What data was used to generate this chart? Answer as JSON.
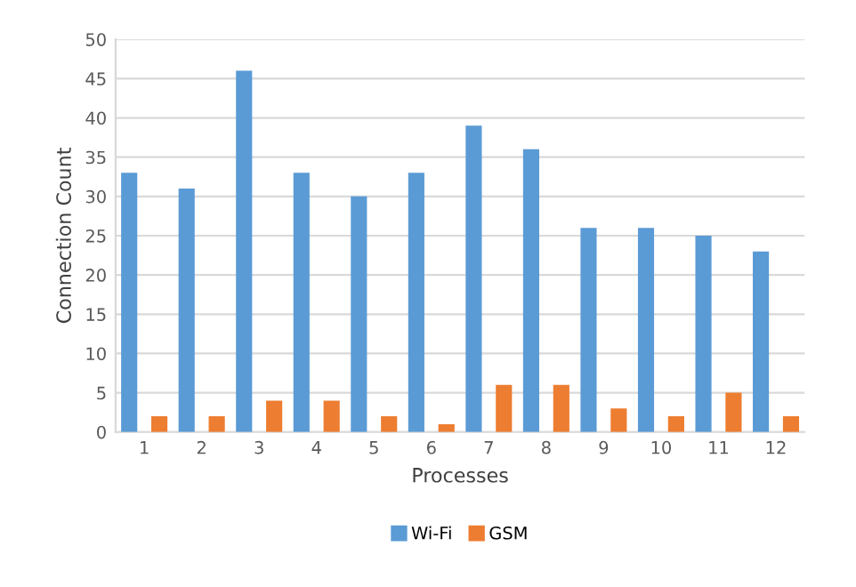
{
  "chart_data": {
    "type": "bar",
    "xlabel": "Processes",
    "ylabel": "Connection Count",
    "categories": [
      "1",
      "2",
      "3",
      "4",
      "5",
      "6",
      "7",
      "8",
      "9",
      "10",
      "11",
      "12"
    ],
    "series": [
      {
        "name": "Wi-Fi",
        "color": "#5b9bd5",
        "values": [
          33,
          31,
          46,
          33,
          30,
          33,
          39,
          36,
          26,
          26,
          25,
          23
        ]
      },
      {
        "name": "GSM",
        "color": "#ed7d31",
        "values": [
          2,
          2,
          4,
          4,
          2,
          1,
          6,
          6,
          3,
          2,
          5,
          2
        ]
      }
    ],
    "ylim": [
      0,
      50
    ],
    "yticks": [
      0,
      5,
      10,
      15,
      20,
      25,
      30,
      35,
      40,
      45,
      50
    ],
    "grid": "y",
    "legend": "bottom"
  }
}
